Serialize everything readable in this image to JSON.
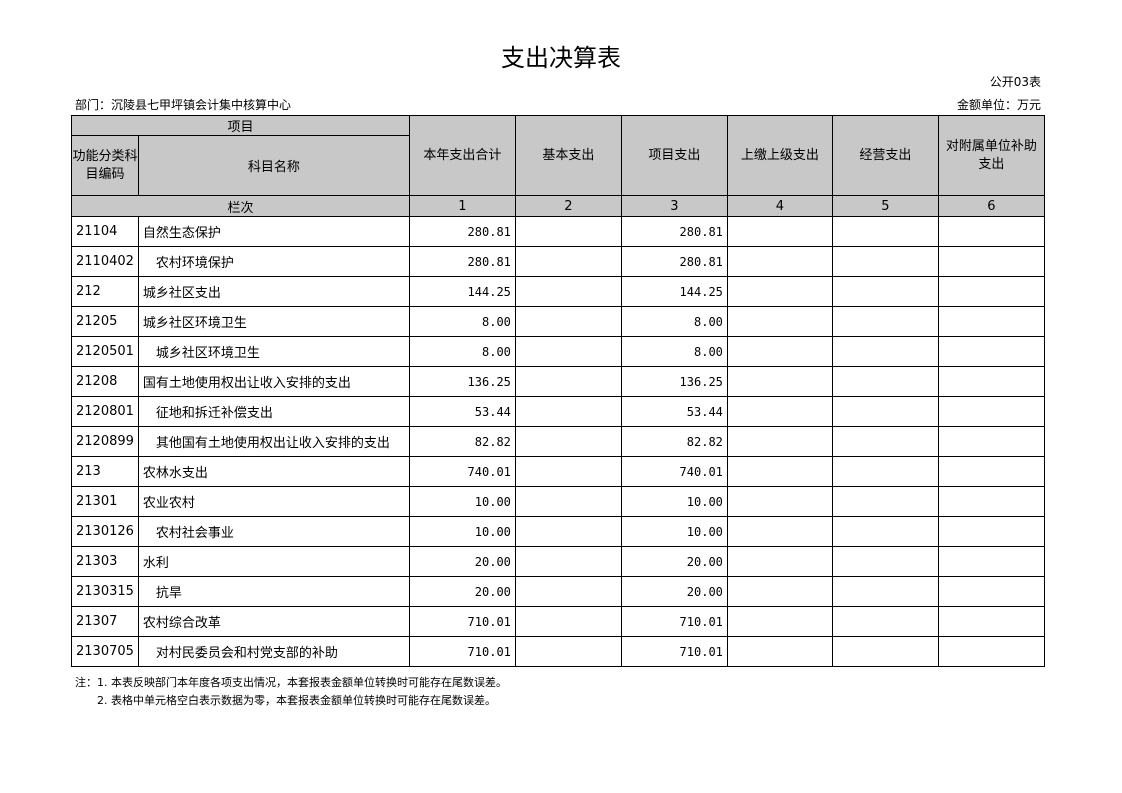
{
  "title": "支出决算表",
  "form_code": "公开03表",
  "department": "部门：沉陵县七甲坪镇会计集中核算中心",
  "unit": "金额单位：万元",
  "header": {
    "item": "项目",
    "code": "功能分类科目编码",
    "name": "科目名称",
    "cols": [
      "本年支出合计",
      "基本支出",
      "项目支出",
      "上缴上级支出",
      "经营支出",
      "对附属单位补助支出"
    ],
    "row_label": "栏次",
    "col_nums": [
      "1",
      "2",
      "3",
      "4",
      "5",
      "6"
    ]
  },
  "rows": [
    {
      "code": "21104",
      "name": "自然生态保护",
      "v": [
        "280.81",
        "",
        "280.81",
        "",
        "",
        ""
      ]
    },
    {
      "code": "2110402",
      "name": "　农村环境保护",
      "v": [
        "280.81",
        "",
        "280.81",
        "",
        "",
        ""
      ]
    },
    {
      "code": "212",
      "name": "城乡社区支出",
      "v": [
        "144.25",
        "",
        "144.25",
        "",
        "",
        ""
      ]
    },
    {
      "code": "21205",
      "name": "城乡社区环境卫生",
      "v": [
        "8.00",
        "",
        "8.00",
        "",
        "",
        ""
      ]
    },
    {
      "code": "2120501",
      "name": "　城乡社区环境卫生",
      "v": [
        "8.00",
        "",
        "8.00",
        "",
        "",
        ""
      ]
    },
    {
      "code": "21208",
      "name": "国有土地使用权出让收入安排的支出",
      "v": [
        "136.25",
        "",
        "136.25",
        "",
        "",
        ""
      ]
    },
    {
      "code": "2120801",
      "name": "　征地和拆迁补偿支出",
      "v": [
        "53.44",
        "",
        "53.44",
        "",
        "",
        ""
      ]
    },
    {
      "code": "2120899",
      "name": "　其他国有土地使用权出让收入安排的支出",
      "v": [
        "82.82",
        "",
        "82.82",
        "",
        "",
        ""
      ]
    },
    {
      "code": "213",
      "name": "农林水支出",
      "v": [
        "740.01",
        "",
        "740.01",
        "",
        "",
        ""
      ]
    },
    {
      "code": "21301",
      "name": "农业农村",
      "v": [
        "10.00",
        "",
        "10.00",
        "",
        "",
        ""
      ]
    },
    {
      "code": "2130126",
      "name": "　农村社会事业",
      "v": [
        "10.00",
        "",
        "10.00",
        "",
        "",
        ""
      ]
    },
    {
      "code": "21303",
      "name": "水利",
      "v": [
        "20.00",
        "",
        "20.00",
        "",
        "",
        ""
      ]
    },
    {
      "code": "2130315",
      "name": "　抗旱",
      "v": [
        "20.00",
        "",
        "20.00",
        "",
        "",
        ""
      ]
    },
    {
      "code": "21307",
      "name": "农村综合改革",
      "v": [
        "710.01",
        "",
        "710.01",
        "",
        "",
        ""
      ]
    },
    {
      "code": "2130705",
      "name": "　对村民委员会和村党支部的补助",
      "v": [
        "710.01",
        "",
        "710.01",
        "",
        "",
        ""
      ]
    }
  ],
  "notes": [
    "注：1. 本表反映部门本年度各项支出情况，本套报表金额单位转换时可能存在尾数误差。",
    "2. 表格中单元格空白表示数据为零，本套报表金额单位转换时可能存在尾数误差。"
  ]
}
